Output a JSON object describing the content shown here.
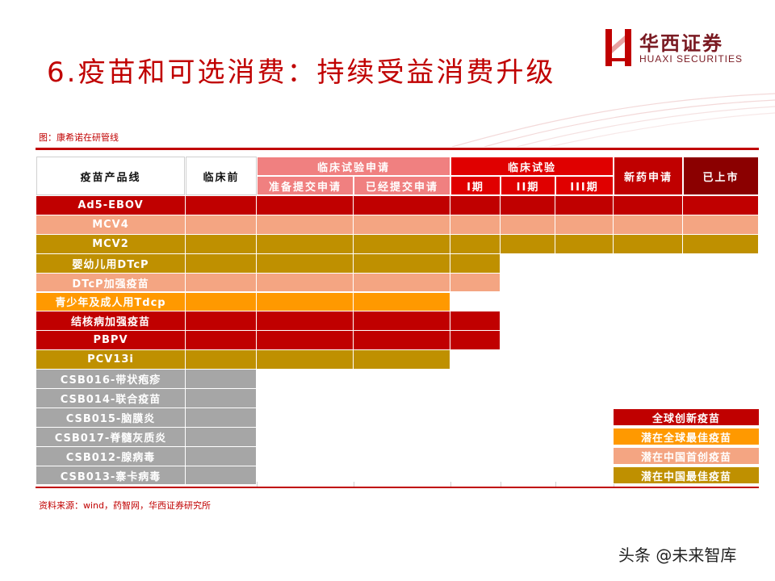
{
  "title": "6.疫苗和可选消费：持续受益消费升级",
  "logo": {
    "cn": "华西证券",
    "en": "HUAXI SECURITIES"
  },
  "figure_title": "图：康希诺在研管线",
  "source": "资料来源：wind，药智网，华西证券研究所",
  "watermark": "头条 @未来智库",
  "colors": {
    "red": "#c00000",
    "salmon": "#f4a582",
    "gold": "#bf9000",
    "orange": "#ff9900",
    "gray": "#a6a6a6",
    "dark_red": "#8b0000",
    "pink_header": "#f08080",
    "red_header": "#e00000"
  },
  "table": {
    "headers": {
      "product": "疫苗产品线",
      "preclinical": "临床前",
      "clinical_app": "临床试验申请",
      "prepare": "准备提交申请",
      "submitted": "已经提交申请",
      "clinical_trial": "临床试验",
      "phase1": "I期",
      "phase2": "II期",
      "phase3": "III期",
      "nda": "新药申请",
      "marketed": "已上市"
    },
    "rows": [
      {
        "name": "Ad5-EBOV",
        "color": "red",
        "stages": 9
      },
      {
        "name": "MCV4",
        "color": "salmon",
        "stages": 8
      },
      {
        "name": "MCV2",
        "color": "gold",
        "stages": 8
      },
      {
        "name": "婴幼儿用DTcP",
        "color": "gold",
        "stages": 4
      },
      {
        "name": "DTcP加强疫苗",
        "color": "salmon",
        "stages": 4
      },
      {
        "name": "青少年及成人用Tdcp",
        "color": "orange",
        "stages": 3
      },
      {
        "name": "结核病加强疫苗",
        "color": "red",
        "stages": 4
      },
      {
        "name": "PBPV",
        "color": "red",
        "stages": 4
      },
      {
        "name": "PCV13i",
        "color": "gold",
        "stages": 3
      },
      {
        "name": "CSB016-带状疱疹",
        "color": "gray",
        "stages": 1
      },
      {
        "name": "CSB014-联合疫苗",
        "color": "gray",
        "stages": 1
      },
      {
        "name": "CSB015-脑膜炎",
        "color": "gray",
        "stages": 1
      },
      {
        "name": "CSB017-脊髓灰质炎",
        "color": "gray",
        "stages": 1
      },
      {
        "name": "CSB012-腺病毒",
        "color": "gray",
        "stages": 1
      },
      {
        "name": "CSB013-寨卡病毒",
        "color": "gray",
        "stages": 1
      }
    ]
  },
  "legend": [
    {
      "label": "全球创新疫苗",
      "color": "red"
    },
    {
      "label": "潜在全球最佳疫苗",
      "color": "orange"
    },
    {
      "label": "潜在中国首创疫苗",
      "color": "salmon"
    },
    {
      "label": "潜在中国最佳疫苗",
      "color": "gold"
    }
  ]
}
